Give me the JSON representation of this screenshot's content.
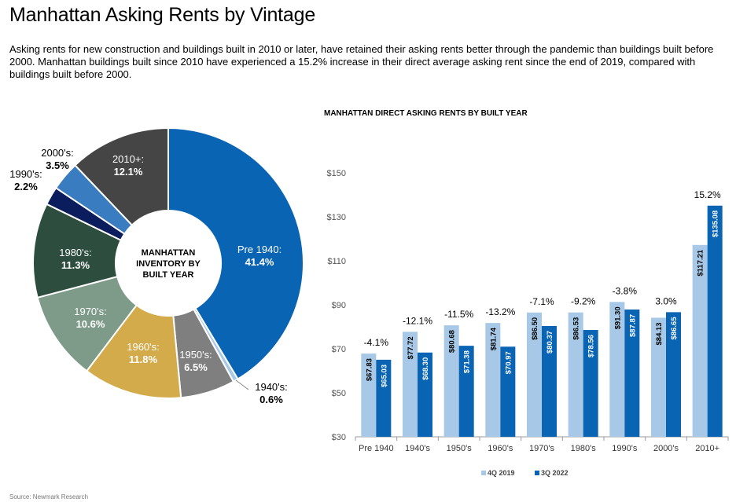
{
  "page": {
    "title": "Manhattan Asking Rents by Vintage",
    "description": "Asking rents for new construction and buildings built in 2010 or later, have retained their asking rents better through the pandemic than buildings built before 2000. Manhattan buildings built since 2010 have experienced a 15.2% increase in their direct average asking rent since the end of 2019, compared with buildings built before 2000.",
    "source": "Source: Newmark Research"
  },
  "chart_data": [
    {
      "type": "pie",
      "center_label": [
        "MANHATTAN",
        "INVENTORY BY",
        "BUILT YEAR"
      ],
      "slices": [
        {
          "name": "Pre 1940",
          "value": 41.4,
          "label": "41.4%",
          "color": "#0a64b4"
        },
        {
          "name": "1940's",
          "value": 0.6,
          "label": "0.6%",
          "color": "#a9c9e8"
        },
        {
          "name": "1950's",
          "value": 6.5,
          "label": "6.5%",
          "color": "#7f7f7f"
        },
        {
          "name": "1960's",
          "value": 11.8,
          "label": "11.8%",
          "color": "#d4ab4a"
        },
        {
          "name": "1970's",
          "value": 10.6,
          "label": "10.6%",
          "color": "#7e9b8a"
        },
        {
          "name": "1980's",
          "value": 11.3,
          "label": "11.3%",
          "color": "#2d4e3e"
        },
        {
          "name": "1990's",
          "value": 2.2,
          "label": "2.2%",
          "color": "#0b1d5c"
        },
        {
          "name": "2000's",
          "value": 3.5,
          "label": "3.5%",
          "color": "#3a7cc0"
        },
        {
          "name": "2010+",
          "value": 12.1,
          "label": "12.1%",
          "color": "#454545"
        }
      ]
    },
    {
      "type": "bar",
      "title": "MANHATTAN DIRECT ASKING RENTS BY BUILT YEAR",
      "categories": [
        "Pre 1940",
        "1940's",
        "1950's",
        "1960's",
        "1970's",
        "1980's",
        "1990's",
        "2000's",
        "2010+"
      ],
      "series": [
        {
          "name": "4Q 2019",
          "color": "#a7c8e6",
          "values": [
            67.83,
            77.72,
            80.68,
            81.74,
            86.5,
            86.53,
            91.3,
            84.13,
            117.21
          ],
          "labels": [
            "$67.83",
            "$77.72",
            "$80.68",
            "$81.74",
            "$86.50",
            "$86.53",
            "$91.30",
            "$84.13",
            "$117.21"
          ]
        },
        {
          "name": "3Q 2022",
          "color": "#0a64b4",
          "values": [
            65.03,
            68.3,
            71.38,
            70.97,
            80.37,
            78.56,
            87.87,
            86.65,
            135.08
          ],
          "labels": [
            "$65.03",
            "$68.30",
            "$71.38",
            "$70.97",
            "$80.37",
            "$78.56",
            "$87.87",
            "$86.65",
            "$135.08"
          ]
        }
      ],
      "change_labels": [
        "-4.1%",
        "-12.1%",
        "-11.5%",
        "-13.2%",
        "-7.1%",
        "-9.2%",
        "-3.8%",
        "3.0%",
        "15.2%"
      ],
      "ylim": [
        30,
        150
      ],
      "yticks": [
        30,
        50,
        70,
        90,
        110,
        130,
        150
      ],
      "ytick_labels": [
        "$30",
        "$50",
        "$70",
        "$90",
        "$110",
        "$130",
        "$150"
      ],
      "grid": false,
      "legend": "bottom-center"
    }
  ]
}
